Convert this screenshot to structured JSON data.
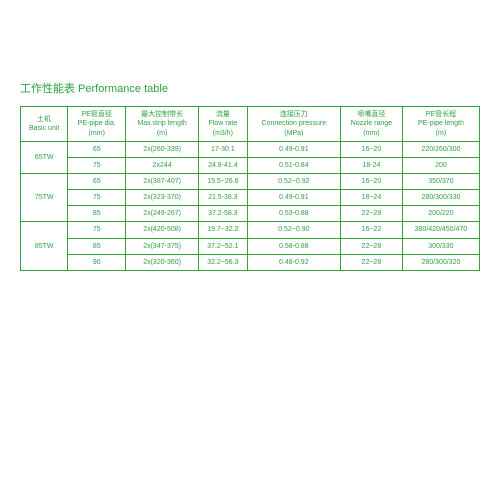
{
  "title": "工作性能表  Performance table",
  "columns": [
    {
      "line1": "土机",
      "line2": "Basic unit"
    },
    {
      "line1": "PE管直径",
      "line2": "PE-pipe dia.",
      "line3": "(mm)"
    },
    {
      "line1": "最大控制带长",
      "line2": "Max.strip length",
      "line3": "(m)"
    },
    {
      "line1": "流量",
      "line2": "Flow rate",
      "line3": "(m3/h)"
    },
    {
      "line1": "连接压力",
      "line2": "Connection pressure",
      "line3": "(MPa)"
    },
    {
      "line1": "喷嘴直径",
      "line2": "Nozzle range",
      "line3": "(mm)"
    },
    {
      "line1": "PE管长程",
      "line2": "PE-pipe length",
      "line3": "(m)"
    }
  ],
  "groups": [
    {
      "unit": "65TW",
      "rows": [
        {
          "dia": "65",
          "strip": "2x(260-339)",
          "flow": "17-30.1",
          "press": "0.49-0.91",
          "nozzle": "16~20",
          "len": "220/260/300"
        },
        {
          "dia": "75",
          "strip": "2x244",
          "flow": "24.8-41.4",
          "press": "0.51-0.84",
          "nozzle": "18-24",
          "len": "200"
        }
      ]
    },
    {
      "unit": "75TW",
      "rows": [
        {
          "dia": "65",
          "strip": "2x(387-407)",
          "flow": "15.5~26.6",
          "press": "0.52~0.92",
          "nozzle": "16~20",
          "len": "350/370"
        },
        {
          "dia": "75",
          "strip": "2x(323-370)",
          "flow": "21.5-38.3",
          "press": "0.49-0.91",
          "nozzle": "18~24",
          "len": "280/300/330"
        },
        {
          "dia": "85",
          "strip": "2x(249-267)",
          "flow": "37.2-58.3",
          "press": "0.53-0.88",
          "nozzle": "22~28",
          "len": "200/220"
        }
      ]
    },
    {
      "unit": "85TW",
      "rows": [
        {
          "dia": "75",
          "strip": "2x(420-508)",
          "flow": "19.7~32.2",
          "press": "0.52~0.90",
          "nozzle": "16~22",
          "len": "380/420/450/470"
        },
        {
          "dia": "85",
          "strip": "2x(347-375)",
          "flow": "37.2~52.1",
          "press": "0.58-0.88",
          "nozzle": "22~28",
          "len": "300/330"
        },
        {
          "dia": "90",
          "strip": "2x(320-360)",
          "flow": "32.2~56.3",
          "press": "0.48-0.92",
          "nozzle": "22~28",
          "len": "280/300/320"
        }
      ]
    }
  ],
  "colors": {
    "primary": "#2fa33f",
    "background": "#ffffff"
  }
}
